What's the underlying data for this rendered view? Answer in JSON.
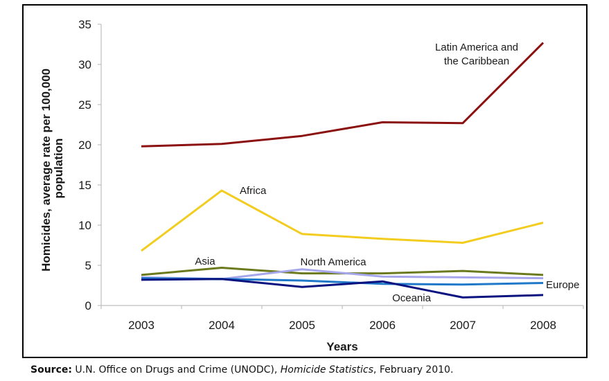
{
  "chart_data": {
    "type": "line",
    "title": "",
    "xlabel": "Years",
    "ylabel_lines": [
      "Homicides, average rate per 100,000",
      "population"
    ],
    "ylabel": "Homicides, average rate per 100,000 population",
    "categories": [
      "2003",
      "2004",
      "2005",
      "2006",
      "2007",
      "2008"
    ],
    "ylim": [
      0,
      35
    ],
    "yticks": [
      0,
      5,
      10,
      15,
      20,
      25,
      30,
      35
    ],
    "grid": false,
    "legend": "inline labels",
    "series": [
      {
        "name": "Latin America and the Caribbean",
        "label_lines": [
          "Latin America and",
          "the Caribbean"
        ],
        "color": "#8b1010",
        "values": [
          19.8,
          20.1,
          21.1,
          22.8,
          22.7,
          32.7
        ]
      },
      {
        "name": "Africa",
        "label_lines": [
          "Africa"
        ],
        "color": "#f2cc1f",
        "values": [
          6.8,
          14.3,
          8.9,
          8.3,
          7.8,
          10.3
        ]
      },
      {
        "name": "Asia",
        "label_lines": [
          "Asia"
        ],
        "color": "#6b7a1e",
        "values": [
          3.8,
          4.7,
          4.0,
          4.0,
          4.3,
          3.8
        ]
      },
      {
        "name": "North America",
        "label_lines": [
          "North America"
        ],
        "color": "#a6a6ec",
        "values": [
          3.5,
          3.3,
          4.5,
          3.6,
          3.5,
          3.4
        ]
      },
      {
        "name": "Europe",
        "label_lines": [
          "Europe"
        ],
        "color": "#1f78c8",
        "values": [
          3.4,
          3.3,
          3.1,
          2.7,
          2.6,
          2.8
        ]
      },
      {
        "name": "Oceania",
        "label_lines": [
          "Oceania"
        ],
        "color": "#0a1280",
        "values": [
          3.2,
          3.3,
          2.3,
          3.0,
          1.0,
          1.3
        ]
      }
    ]
  },
  "source": {
    "label": "Source:",
    "text_before": " U.N. Office on Drugs and Crime (UNODC), ",
    "italic": "Homicide Statistics",
    "text_after": ", February 2010."
  }
}
